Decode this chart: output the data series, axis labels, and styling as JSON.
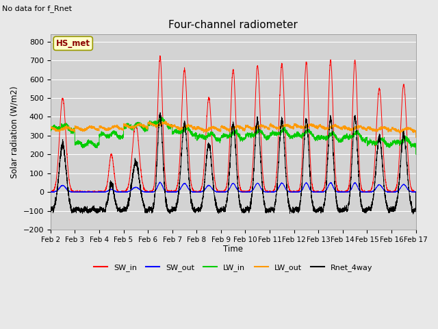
{
  "title": "Four-channel radiometer",
  "top_left_text": "No data for f_Rnet",
  "ylabel": "Solar radiation (W/m2)",
  "xlabel": "Time",
  "annotation_box": "HS_met",
  "ylim": [
    -200,
    840
  ],
  "yticks": [
    -200,
    -100,
    0,
    100,
    200,
    300,
    400,
    500,
    600,
    700,
    800
  ],
  "xtick_labels": [
    "Feb 2",
    "Feb 3",
    "Feb 4",
    "Feb 5",
    "Feb 6",
    "Feb 7",
    "Feb 8",
    "Feb 9",
    "Feb 10",
    "Feb 11",
    "Feb 12",
    "Feb 13",
    "Feb 14",
    "Feb 15",
    "Feb 16",
    "Feb 17"
  ],
  "n_days": 15,
  "colors": {
    "SW_in": "#ff0000",
    "SW_out": "#0000ff",
    "LW_in": "#00cc00",
    "LW_out": "#ff9900",
    "Rnet_4way": "#000000"
  },
  "background_color": "#e8e8e8",
  "plot_bg_color": "#d3d3d3",
  "grid_color": "#ffffff",
  "figsize": [
    6.4,
    4.8
  ],
  "dpi": 100,
  "sw_in_peaks": [
    500,
    0,
    200,
    360,
    720,
    650,
    500,
    650,
    670,
    680,
    690,
    700,
    700,
    550,
    570
  ],
  "sw_in_widths": [
    0.13,
    0.05,
    0.1,
    0.14,
    0.1,
    0.12,
    0.12,
    0.11,
    0.11,
    0.11,
    0.1,
    0.1,
    0.1,
    0.12,
    0.12
  ],
  "lw_in_base": 290,
  "lw_out_base": 335,
  "night_rnet": -95
}
